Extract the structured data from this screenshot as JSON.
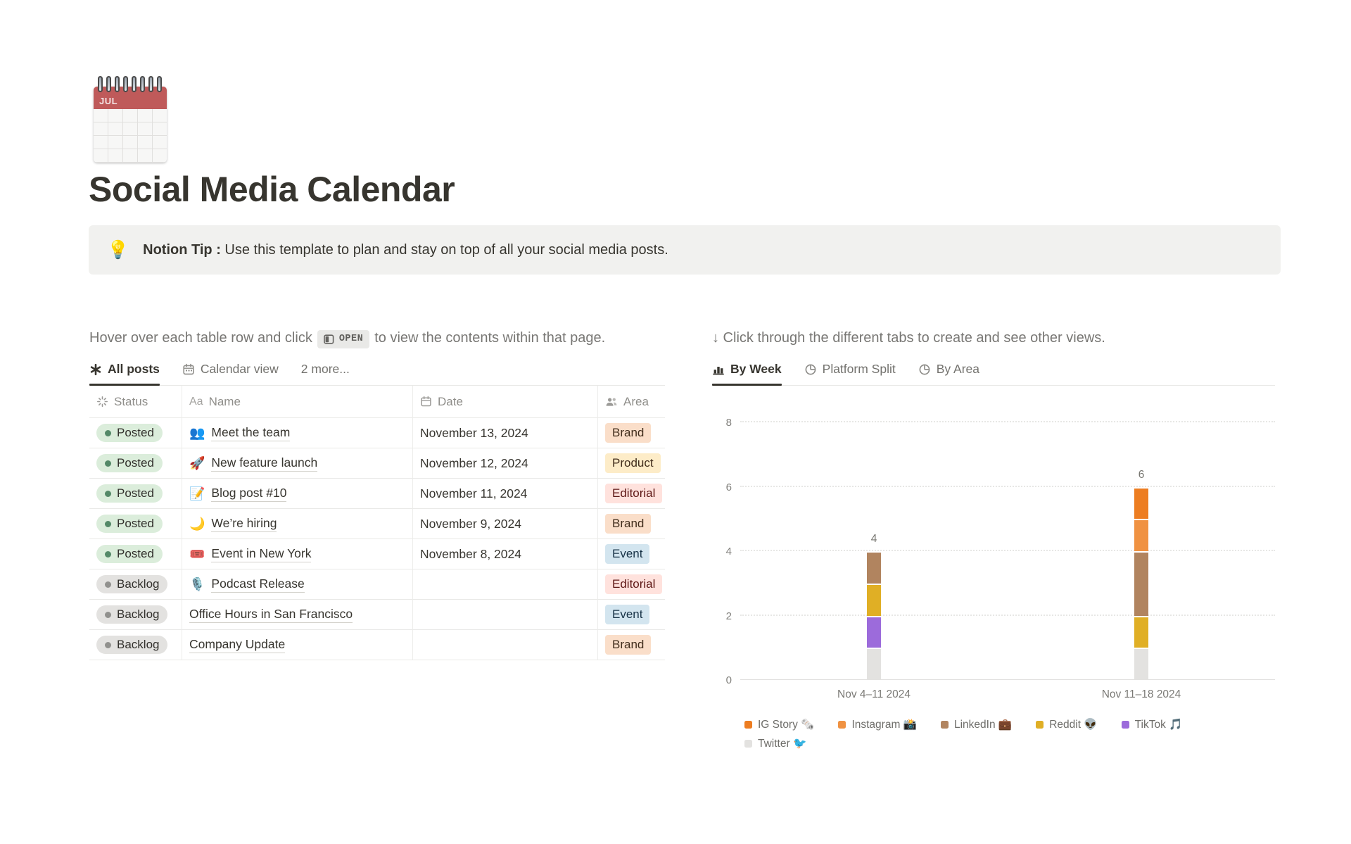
{
  "page": {
    "title": "Social Media Calendar",
    "icon": "spiral-calendar",
    "icon_month": "JUL"
  },
  "callout": {
    "icon": "💡",
    "bold": "Notion Tip :",
    "text": " Use this template to plan and stay on top of all your social media posts."
  },
  "left": {
    "instruction_before": "Hover over each table row and click",
    "open_label": "OPEN",
    "instruction_after": "to view the contents within that page.",
    "tabs": [
      {
        "label": "All posts",
        "icon": "asterisk-icon",
        "active": true
      },
      {
        "label": "Calendar view",
        "icon": "calendar-icon",
        "active": false
      },
      {
        "label": "2 more...",
        "icon": null,
        "active": false
      }
    ],
    "table": {
      "headers": {
        "status": "Status",
        "name_prefix": "Aa",
        "name": "Name",
        "date": "Date",
        "area": "Area"
      },
      "rows": [
        {
          "status": "Posted",
          "emoji": "👥",
          "name": "Meet the team",
          "date": "November 13, 2024",
          "area": "Brand"
        },
        {
          "status": "Posted",
          "emoji": "🚀",
          "name": "New feature launch",
          "date": "November 12, 2024",
          "area": "Product"
        },
        {
          "status": "Posted",
          "emoji": "📝",
          "name": "Blog post #10",
          "date": "November 11, 2024",
          "area": "Editorial"
        },
        {
          "status": "Posted",
          "emoji": "🌙",
          "name": "We’re hiring",
          "date": "November 9, 2024",
          "area": "Brand"
        },
        {
          "status": "Posted",
          "emoji": "🎟️",
          "name": "Event in New York",
          "date": "November 8, 2024",
          "area": "Event"
        },
        {
          "status": "Backlog",
          "emoji": "🎙️",
          "name": "Podcast Release",
          "date": "",
          "area": "Editorial"
        },
        {
          "status": "Backlog",
          "emoji": "",
          "name": "Office Hours in San Francisco",
          "date": "",
          "area": "Event"
        },
        {
          "status": "Backlog",
          "emoji": "",
          "name": "Company Update",
          "date": "",
          "area": "Brand"
        }
      ]
    }
  },
  "right": {
    "instruction": "↓ Click through the different tabs to create and see other views.",
    "tabs": [
      {
        "label": "By Week",
        "icon": "bar-chart-icon",
        "active": true
      },
      {
        "label": "Platform Split",
        "icon": "pie-chart-icon",
        "active": false
      },
      {
        "label": "By Area",
        "icon": "pie-chart-icon",
        "active": false
      }
    ]
  },
  "status_colors": {
    "Posted": {
      "bg": "#DBEDDB",
      "dot": "#548968"
    },
    "Backlog": {
      "bg": "#E3E2E0",
      "dot": "#91918E"
    }
  },
  "area_colors": {
    "Brand": {
      "bg": "#FADEC9",
      "text": "#402C1B"
    },
    "Product": {
      "bg": "#FDECC8",
      "text": "#402C1B"
    },
    "Editorial": {
      "bg": "#FFE2DD",
      "text": "#5D1715"
    },
    "Event": {
      "bg": "#D3E5EF",
      "text": "#183347"
    }
  },
  "chart_data": {
    "type": "bar",
    "stacked": true,
    "categories": [
      "Nov 4–11 2024",
      "Nov 11–18 2024"
    ],
    "series": [
      {
        "name": "Twitter 🐦",
        "color": "#E3E2E0",
        "values": [
          1,
          1
        ]
      },
      {
        "name": "TikTok 🎵",
        "color": "#9C6BDB",
        "values": [
          1,
          0
        ]
      },
      {
        "name": "Reddit 👽",
        "color": "#E0AF25",
        "values": [
          1,
          1
        ]
      },
      {
        "name": "LinkedIn 💼",
        "color": "#B1845F",
        "values": [
          1,
          2
        ]
      },
      {
        "name": "Instagram 📸",
        "color": "#F09242",
        "values": [
          0,
          1
        ]
      },
      {
        "name": "IG Story 🗞️",
        "color": "#ED7D21",
        "values": [
          0,
          1
        ]
      }
    ],
    "legend_order": [
      "IG Story 🗞️",
      "Instagram 📸",
      "LinkedIn 💼",
      "Reddit 👽",
      "TikTok 🎵",
      "Twitter 🐦"
    ],
    "totals": [
      4,
      6
    ],
    "title": "",
    "xlabel": "",
    "ylabel": "",
    "ylim": [
      0,
      8
    ],
    "yticks": [
      0,
      2,
      4,
      6,
      8
    ],
    "grid": "dotted-horizontal",
    "legend_position": "bottom"
  }
}
